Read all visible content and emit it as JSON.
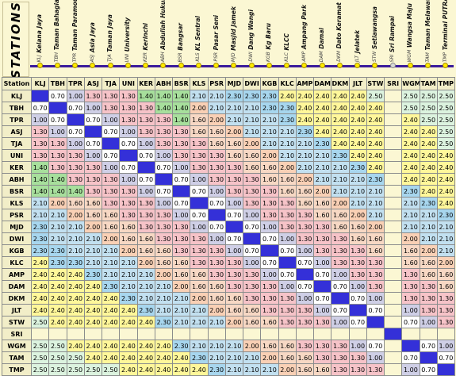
{
  "title": "STATIONS",
  "station_header_label": "Station",
  "stations": [
    {
      "code": "KLJ",
      "name": "Kelana Jaya"
    },
    {
      "code": "TBH",
      "name": "Taman Bahagia"
    },
    {
      "code": "TPR",
      "name": "Taman Paramount"
    },
    {
      "code": "ASJ",
      "name": "Asia Jaya"
    },
    {
      "code": "TJA",
      "name": "Taman Jaya"
    },
    {
      "code": "UNI",
      "name": "University"
    },
    {
      "code": "KER",
      "name": "Kerinchi"
    },
    {
      "code": "ABH",
      "name": "Abdullah Hukum"
    },
    {
      "code": "BSR",
      "name": "Bangsar"
    },
    {
      "code": "KLS",
      "name": "KL Sentral"
    },
    {
      "code": "PSR",
      "name": "Pasar Seni"
    },
    {
      "code": "MJD",
      "name": "Masjid Jamek"
    },
    {
      "code": "DWI",
      "name": "Dang Wangi"
    },
    {
      "code": "KGB",
      "name": "Kg Baru"
    },
    {
      "code": "KLC",
      "name": "KLCC"
    },
    {
      "code": "AMP",
      "name": "Ampang Park"
    },
    {
      "code": "DAM",
      "name": "Damai"
    },
    {
      "code": "DKM",
      "name": "Dato Keramat"
    },
    {
      "code": "JLT",
      "name": "Jelatek"
    },
    {
      "code": "STW",
      "name": "Setiawangsa"
    },
    {
      "code": "SRI",
      "name": "Sri Rampai"
    },
    {
      "code": "WGM",
      "name": "Wangsa Maju"
    },
    {
      "code": "TAM",
      "name": "Taman Melawati"
    },
    {
      "code": "TMP",
      "name": "Terminal PUTRA"
    }
  ],
  "fares": [
    [
      "X",
      "0.70",
      "1.00",
      "1.30",
      "1.30",
      "1.30",
      "1.40",
      "1.40",
      "1.40",
      "2.10",
      "2.10",
      "2.30",
      "2.30",
      "2.30",
      "2.40",
      "2.40",
      "2.40",
      "2.40",
      "2.40",
      "2.50",
      "N",
      "2.50",
      "2.50",
      "2.50"
    ],
    [
      "0.70",
      "X",
      "0.70",
      "1.00",
      "1.30",
      "1.30",
      "1.30",
      "1.40",
      "1.40",
      "2.00",
      "2.10",
      "2.10",
      "2.10",
      "2.30",
      "2.30",
      "2.40",
      "2.40",
      "2.40",
      "2.40",
      "2.40",
      "N",
      "2.50",
      "2.50",
      "2.50"
    ],
    [
      "1.00",
      "0.70",
      "X",
      "0.70",
      "1.00",
      "1.30",
      "1.30",
      "1.30",
      "1.40",
      "1.60",
      "2.00",
      "2.10",
      "2.10",
      "2.10",
      "2.30",
      "2.40",
      "2.40",
      "2.40",
      "2.40",
      "2.40",
      "N",
      "2.40",
      "2.50",
      "2.50"
    ],
    [
      "1.30",
      "1.00",
      "0.70",
      "X",
      "0.70",
      "1.00",
      "1.30",
      "1.30",
      "1.30",
      "1.60",
      "1.60",
      "2.00",
      "2.10",
      "2.10",
      "2.10",
      "2.30",
      "2.40",
      "2.40",
      "2.40",
      "2.40",
      "N",
      "2.40",
      "2.40",
      "2.50"
    ],
    [
      "1.30",
      "1.30",
      "1.00",
      "0.70",
      "X",
      "0.70",
      "1.00",
      "1.30",
      "1.30",
      "1.30",
      "1.60",
      "1.60",
      "2.00",
      "2.10",
      "2.10",
      "2.10",
      "2.30",
      "2.40",
      "2.40",
      "2.40",
      "N",
      "2.40",
      "2.40",
      "2.50"
    ],
    [
      "1.30",
      "1.30",
      "1.30",
      "1.00",
      "0.70",
      "X",
      "0.70",
      "1.00",
      "1.30",
      "1.30",
      "1.30",
      "1.60",
      "1.60",
      "2.00",
      "2.10",
      "2.10",
      "2.10",
      "2.30",
      "2.40",
      "2.40",
      "N",
      "2.40",
      "2.40",
      "2.40"
    ],
    [
      "1.40",
      "1.30",
      "1.30",
      "1.30",
      "1.00",
      "0.70",
      "X",
      "0.70",
      "1.00",
      "1.30",
      "1.30",
      "1.30",
      "1.60",
      "1.60",
      "2.00",
      "2.10",
      "2.10",
      "2.10",
      "2.30",
      "2.40",
      "N",
      "2.40",
      "2.40",
      "2.40"
    ],
    [
      "1.40",
      "1.40",
      "1.30",
      "1.30",
      "1.30",
      "1.00",
      "0.70",
      "X",
      "0.70",
      "1.00",
      "1.30",
      "1.30",
      "1.30",
      "1.60",
      "1.60",
      "2.00",
      "2.10",
      "2.10",
      "2.10",
      "2.30",
      "N",
      "2.40",
      "2.40",
      "2.40"
    ],
    [
      "1.40",
      "1.40",
      "1.40",
      "1.30",
      "1.30",
      "1.30",
      "1.00",
      "0.70",
      "X",
      "0.70",
      "1.00",
      "1.30",
      "1.30",
      "1.30",
      "1.60",
      "1.60",
      "2.00",
      "2.10",
      "2.10",
      "2.10",
      "N",
      "2.30",
      "2.40",
      "2.40"
    ],
    [
      "2.10",
      "2.00",
      "1.60",
      "1.60",
      "1.30",
      "1.30",
      "1.30",
      "1.00",
      "0.70",
      "X",
      "0.70",
      "1.00",
      "1.30",
      "1.30",
      "1.30",
      "1.60",
      "1.60",
      "2.00",
      "2.10",
      "2.10",
      "N",
      "2.10",
      "2.30",
      "2.40"
    ],
    [
      "2.10",
      "2.10",
      "2.00",
      "1.60",
      "1.60",
      "1.30",
      "1.30",
      "1.30",
      "1.00",
      "0.70",
      "X",
      "0.70",
      "1.00",
      "1.30",
      "1.30",
      "1.30",
      "1.60",
      "1.60",
      "2.00",
      "2.10",
      "N",
      "2.10",
      "2.10",
      "2.30"
    ],
    [
      "2.30",
      "2.10",
      "2.10",
      "2.00",
      "1.60",
      "1.60",
      "1.30",
      "1.30",
      "1.30",
      "1.00",
      "0.70",
      "X",
      "0.70",
      "1.00",
      "1.30",
      "1.30",
      "1.30",
      "1.60",
      "1.60",
      "2.00",
      "N",
      "2.10",
      "2.10",
      "2.10"
    ],
    [
      "2.30",
      "2.10",
      "2.10",
      "2.10",
      "2.00",
      "1.60",
      "1.60",
      "1.30",
      "1.30",
      "1.30",
      "1.00",
      "0.70",
      "X",
      "0.70",
      "1.00",
      "1.30",
      "1.30",
      "1.30",
      "1.60",
      "1.60",
      "N",
      "2.00",
      "2.10",
      "2.10"
    ],
    [
      "2.30",
      "2.30",
      "2.10",
      "2.10",
      "2.10",
      "2.00",
      "1.60",
      "1.60",
      "1.30",
      "1.30",
      "1.30",
      "1.00",
      "0.70",
      "X",
      "0.70",
      "1.00",
      "1.30",
      "1.30",
      "1.30",
      "1.60",
      "N",
      "1.60",
      "2.00",
      "2.10"
    ],
    [
      "2.40",
      "2.30",
      "2.30",
      "2.10",
      "2.10",
      "2.10",
      "2.00",
      "1.60",
      "1.60",
      "1.30",
      "1.30",
      "1.30",
      "1.00",
      "0.70",
      "X",
      "0.70",
      "1.00",
      "1.30",
      "1.30",
      "1.30",
      "N",
      "1.60",
      "1.60",
      "2.00"
    ],
    [
      "2.40",
      "2.40",
      "2.40",
      "2.30",
      "2.10",
      "2.10",
      "2.10",
      "2.00",
      "1.60",
      "1.60",
      "1.30",
      "1.30",
      "1.30",
      "1.00",
      "0.70",
      "X",
      "0.70",
      "1.00",
      "1.30",
      "1.30",
      "N",
      "1.30",
      "1.60",
      "1.60"
    ],
    [
      "2.40",
      "2.40",
      "2.40",
      "2.40",
      "2.30",
      "2.10",
      "2.10",
      "2.10",
      "2.00",
      "1.60",
      "1.60",
      "1.30",
      "1.30",
      "1.30",
      "1.00",
      "0.70",
      "X",
      "0.70",
      "1.00",
      "1.30",
      "N",
      "1.30",
      "1.30",
      "1.60"
    ],
    [
      "2.40",
      "2.40",
      "2.40",
      "2.40",
      "2.40",
      "2.30",
      "2.10",
      "2.10",
      "2.10",
      "2.00",
      "1.60",
      "1.60",
      "1.30",
      "1.30",
      "1.30",
      "1.00",
      "0.70",
      "X",
      "0.70",
      "1.00",
      "N",
      "1.30",
      "1.30",
      "1.30"
    ],
    [
      "2.40",
      "2.40",
      "2.40",
      "2.40",
      "2.40",
      "2.40",
      "2.30",
      "2.10",
      "2.10",
      "2.10",
      "2.00",
      "1.60",
      "1.60",
      "1.30",
      "1.30",
      "1.30",
      "1.00",
      "0.70",
      "X",
      "0.70",
      "N",
      "1.00",
      "1.30",
      "1.30"
    ],
    [
      "2.50",
      "2.40",
      "2.40",
      "2.40",
      "2.40",
      "2.40",
      "2.40",
      "2.30",
      "2.10",
      "2.10",
      "2.10",
      "2.00",
      "1.60",
      "1.60",
      "1.30",
      "1.30",
      "1.30",
      "1.00",
      "0.70",
      "X",
      "N",
      "0.70",
      "1.00",
      "1.30"
    ],
    [
      "N",
      "N",
      "N",
      "N",
      "N",
      "N",
      "N",
      "N",
      "N",
      "N",
      "N",
      "N",
      "N",
      "N",
      "N",
      "N",
      "N",
      "N",
      "N",
      "N",
      "X",
      "N",
      "N",
      "N"
    ],
    [
      "2.50",
      "2.50",
      "2.40",
      "2.40",
      "2.40",
      "2.40",
      "2.40",
      "2.40",
      "2.30",
      "2.10",
      "2.10",
      "2.10",
      "2.00",
      "1.60",
      "1.60",
      "1.30",
      "1.30",
      "1.30",
      "1.00",
      "0.70",
      "N",
      "X",
      "0.70",
      "1.00"
    ],
    [
      "2.50",
      "2.50",
      "2.50",
      "2.40",
      "2.40",
      "2.40",
      "2.40",
      "2.40",
      "2.40",
      "2.30",
      "2.10",
      "2.10",
      "2.10",
      "2.00",
      "1.60",
      "1.60",
      "1.30",
      "1.30",
      "1.30",
      "1.00",
      "N",
      "0.70",
      "X",
      "0.70"
    ],
    [
      "2.50",
      "2.50",
      "2.50",
      "2.50",
      "2.50",
      "2.40",
      "2.40",
      "2.40",
      "2.40",
      "2.40",
      "2.30",
      "2.10",
      "2.10",
      "2.10",
      "2.00",
      "1.60",
      "1.60",
      "1.30",
      "1.30",
      "1.30",
      "N",
      "1.00",
      "0.70",
      "X"
    ]
  ],
  "colors": {
    "diagonal": "#3430d8",
    "track": "#3b1b9b",
    "station_dot": "#ffea00"
  }
}
